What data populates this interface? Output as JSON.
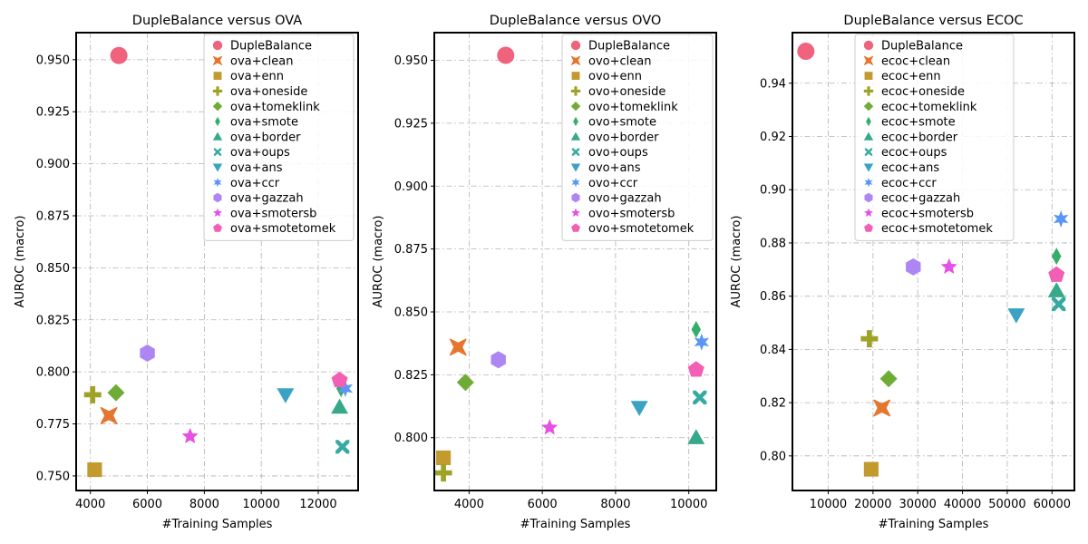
{
  "chart_data": [
    {
      "type": "scatter",
      "title": "DupleBalance versus OVA",
      "xlabel": "#Training Samples",
      "ylabel": "AUROC (macro)",
      "xlim": [
        3500,
        13400
      ],
      "ylim": [
        0.743,
        0.963
      ],
      "xticks": [
        4000,
        6000,
        8000,
        10000,
        12000
      ],
      "xtick_labels": [
        "4000",
        "6000",
        "8000",
        "10000",
        "12000"
      ],
      "yticks": [
        0.75,
        0.775,
        0.8,
        0.825,
        0.85,
        0.875,
        0.9,
        0.925,
        0.95
      ],
      "ytick_labels": [
        "0.750",
        "0.775",
        "0.800",
        "0.825",
        "0.850",
        "0.875",
        "0.900",
        "0.925",
        "0.950"
      ],
      "grid": true,
      "legend_position": "top-right",
      "series": [
        {
          "name": "DupleBalance",
          "marker": "circle",
          "color": "#f0637c",
          "x": 5000,
          "y": 0.952
        },
        {
          "name": "ova+clean",
          "marker": "x",
          "color": "#e5762f",
          "x": 4650,
          "y": 0.779
        },
        {
          "name": "ova+enn",
          "marker": "square",
          "color": "#c29a2e",
          "x": 4150,
          "y": 0.753
        },
        {
          "name": "ova+oneside",
          "marker": "plus",
          "color": "#9ea227",
          "x": 4080,
          "y": 0.789
        },
        {
          "name": "ova+tomeklink",
          "marker": "diamond",
          "color": "#6fac35",
          "x": 4900,
          "y": 0.79
        },
        {
          "name": "ova+smote",
          "marker": "thin_diamond",
          "color": "#35ae6a",
          "x": 12800,
          "y": 0.792
        },
        {
          "name": "ova+border",
          "marker": "triangle_up",
          "color": "#36a98b",
          "x": 12750,
          "y": 0.783
        },
        {
          "name": "ova+oups",
          "marker": "x_filled",
          "color": "#36a9a2",
          "x": 12850,
          "y": 0.764
        },
        {
          "name": "ova+ans",
          "marker": "triangle_down",
          "color": "#3aa3c3",
          "x": 10850,
          "y": 0.789
        },
        {
          "name": "ova+ccr",
          "marker": "star6",
          "color": "#5b96f5",
          "x": 12950,
          "y": 0.792
        },
        {
          "name": "ova+gazzah",
          "marker": "hexagon",
          "color": "#ad86f3",
          "x": 6000,
          "y": 0.809
        },
        {
          "name": "ova+smotersb",
          "marker": "star",
          "color": "#e650e6",
          "x": 7500,
          "y": 0.769
        },
        {
          "name": "ova+smotetomek",
          "marker": "pentagon",
          "color": "#f25fb4",
          "x": 12750,
          "y": 0.796
        }
      ]
    },
    {
      "type": "scatter",
      "title": "DupleBalance versus OVO",
      "xlabel": "#Training Samples",
      "ylabel": "AUROC (macro)",
      "xlim": [
        3050,
        10750
      ],
      "ylim": [
        0.779,
        0.961
      ],
      "xticks": [
        4000,
        6000,
        8000,
        10000
      ],
      "xtick_labels": [
        "4000",
        "6000",
        "8000",
        "10000"
      ],
      "yticks": [
        0.8,
        0.825,
        0.85,
        0.875,
        0.9,
        0.925,
        0.95
      ],
      "ytick_labels": [
        "0.800",
        "0.825",
        "0.850",
        "0.875",
        "0.900",
        "0.925",
        "0.950"
      ],
      "grid": true,
      "legend_position": "top-right",
      "series": [
        {
          "name": "DupleBalance",
          "marker": "circle",
          "color": "#f0637c",
          "x": 5000,
          "y": 0.952
        },
        {
          "name": "ovo+clean",
          "marker": "x",
          "color": "#e5762f",
          "x": 3700,
          "y": 0.836
        },
        {
          "name": "ovo+enn",
          "marker": "square",
          "color": "#c29a2e",
          "x": 3300,
          "y": 0.792
        },
        {
          "name": "ovo+oneside",
          "marker": "plus",
          "color": "#9ea227",
          "x": 3300,
          "y": 0.786
        },
        {
          "name": "ovo+tomeklink",
          "marker": "diamond",
          "color": "#6fac35",
          "x": 3900,
          "y": 0.822
        },
        {
          "name": "ovo+smote",
          "marker": "thin_diamond",
          "color": "#35ae6a",
          "x": 10200,
          "y": 0.843
        },
        {
          "name": "ovo+border",
          "marker": "triangle_up",
          "color": "#36a98b",
          "x": 10200,
          "y": 0.8
        },
        {
          "name": "ovo+oups",
          "marker": "x_filled",
          "color": "#36a9a2",
          "x": 10300,
          "y": 0.816
        },
        {
          "name": "ovo+ans",
          "marker": "triangle_down",
          "color": "#3aa3c3",
          "x": 8650,
          "y": 0.812
        },
        {
          "name": "ovo+ccr",
          "marker": "star6",
          "color": "#5b96f5",
          "x": 10350,
          "y": 0.838
        },
        {
          "name": "ovo+gazzah",
          "marker": "hexagon",
          "color": "#ad86f3",
          "x": 4800,
          "y": 0.831
        },
        {
          "name": "ovo+smotersb",
          "marker": "star",
          "color": "#e650e6",
          "x": 6200,
          "y": 0.804
        },
        {
          "name": "ovo+smotetomek",
          "marker": "pentagon",
          "color": "#f25fb4",
          "x": 10200,
          "y": 0.827
        }
      ]
    },
    {
      "type": "scatter",
      "title": "DupleBalance versus ECOC",
      "xlabel": "#Training Samples",
      "ylabel": "AUROC (macro)",
      "xlim": [
        2000,
        65000
      ],
      "ylim": [
        0.787,
        0.959
      ],
      "xticks": [
        10000,
        20000,
        30000,
        40000,
        50000,
        60000
      ],
      "xtick_labels": [
        "10000",
        "20000",
        "30000",
        "40000",
        "50000",
        "60000"
      ],
      "yticks": [
        0.8,
        0.82,
        0.84,
        0.86,
        0.88,
        0.9,
        0.92,
        0.94
      ],
      "ytick_labels": [
        "0.80",
        "0.82",
        "0.84",
        "0.86",
        "0.88",
        "0.90",
        "0.92",
        "0.94"
      ],
      "grid": true,
      "legend_position": "top-center",
      "series": [
        {
          "name": "DupleBalance",
          "marker": "circle",
          "color": "#f0637c",
          "x": 5000,
          "y": 0.952
        },
        {
          "name": "ecoc+clean",
          "marker": "x",
          "color": "#e5762f",
          "x": 22000,
          "y": 0.818
        },
        {
          "name": "ecoc+enn",
          "marker": "square",
          "color": "#c29a2e",
          "x": 19600,
          "y": 0.795
        },
        {
          "name": "ecoc+oneside",
          "marker": "plus",
          "color": "#9ea227",
          "x": 19200,
          "y": 0.844
        },
        {
          "name": "ecoc+tomeklink",
          "marker": "diamond",
          "color": "#6fac35",
          "x": 23500,
          "y": 0.829
        },
        {
          "name": "ecoc+smote",
          "marker": "thin_diamond",
          "color": "#35ae6a",
          "x": 61000,
          "y": 0.875
        },
        {
          "name": "ecoc+border",
          "marker": "triangle_up",
          "color": "#36a98b",
          "x": 61000,
          "y": 0.862
        },
        {
          "name": "ecoc+oups",
          "marker": "x_filled",
          "color": "#36a9a2",
          "x": 61500,
          "y": 0.857
        },
        {
          "name": "ecoc+ans",
          "marker": "triangle_down",
          "color": "#3aa3c3",
          "x": 52000,
          "y": 0.853
        },
        {
          "name": "ecoc+ccr",
          "marker": "star6",
          "color": "#5b96f5",
          "x": 62000,
          "y": 0.889
        },
        {
          "name": "ecoc+gazzah",
          "marker": "hexagon",
          "color": "#ad86f3",
          "x": 29000,
          "y": 0.871
        },
        {
          "name": "ecoc+smotersb",
          "marker": "star",
          "color": "#e650e6",
          "x": 37000,
          "y": 0.871
        },
        {
          "name": "ecoc+smotetomek",
          "marker": "pentagon",
          "color": "#f25fb4",
          "x": 61000,
          "y": 0.868
        }
      ]
    }
  ]
}
